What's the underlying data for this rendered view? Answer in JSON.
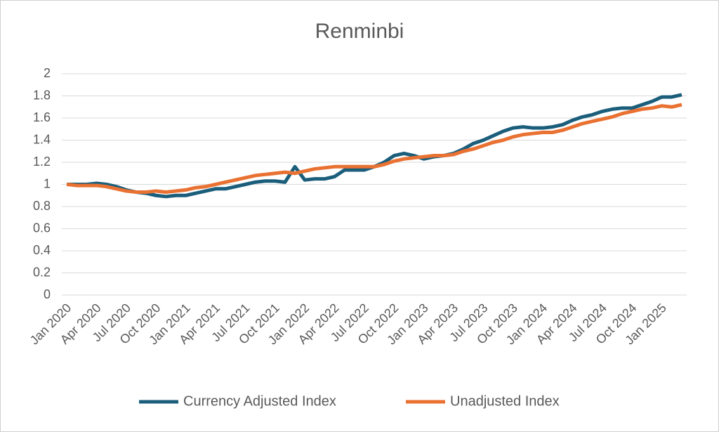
{
  "chart_data": {
    "type": "line",
    "title": "Renminbi",
    "categories": [
      "Jan 2020",
      null,
      null,
      "Apr 2020",
      null,
      null,
      "Jul 2020",
      null,
      null,
      "Oct 2020",
      null,
      null,
      "Jan 2021",
      null,
      null,
      "Apr 2021",
      null,
      null,
      "Jul 2021",
      null,
      null,
      "Oct 2021",
      null,
      null,
      "Jan 2022",
      null,
      null,
      "Apr 2022",
      null,
      null,
      "Jul 2022",
      null,
      null,
      "Oct 2022",
      null,
      null,
      "Jan 2023",
      null,
      null,
      "Apr 2023",
      null,
      null,
      "Jul 2023",
      null,
      null,
      "Oct 2023",
      null,
      null,
      "Jan 2024",
      null,
      null,
      "Apr 2024",
      null,
      null,
      "Jul 2024",
      null,
      null,
      "Oct 2024",
      null,
      null,
      "Jan 2025",
      null,
      null
    ],
    "series": [
      {
        "name": "Currency Adjusted Index",
        "color": "#1b5e7b",
        "values": [
          1.0,
          1.0,
          1.0,
          1.01,
          1.0,
          0.98,
          0.95,
          0.93,
          0.92,
          0.9,
          0.89,
          0.9,
          0.9,
          0.92,
          0.94,
          0.96,
          0.96,
          0.98,
          1.0,
          1.02,
          1.03,
          1.03,
          1.02,
          1.16,
          1.04,
          1.05,
          1.05,
          1.07,
          1.13,
          1.13,
          1.13,
          1.16,
          1.2,
          1.26,
          1.28,
          1.26,
          1.23,
          1.25,
          1.26,
          1.28,
          1.32,
          1.37,
          1.4,
          1.44,
          1.48,
          1.51,
          1.52,
          1.51,
          1.51,
          1.52,
          1.54,
          1.58,
          1.61,
          1.63,
          1.66,
          1.68,
          1.69,
          1.69,
          1.72,
          1.75,
          1.79,
          1.79,
          1.81
        ]
      },
      {
        "name": "Unadjusted Index",
        "color": "#e97132",
        "values": [
          1.0,
          0.99,
          0.99,
          0.99,
          0.98,
          0.96,
          0.94,
          0.93,
          0.93,
          0.94,
          0.93,
          0.94,
          0.95,
          0.97,
          0.98,
          1.0,
          1.02,
          1.04,
          1.06,
          1.08,
          1.09,
          1.1,
          1.11,
          1.1,
          1.12,
          1.14,
          1.15,
          1.16,
          1.16,
          1.16,
          1.16,
          1.16,
          1.18,
          1.21,
          1.23,
          1.24,
          1.25,
          1.26,
          1.26,
          1.27,
          1.3,
          1.32,
          1.35,
          1.38,
          1.4,
          1.43,
          1.45,
          1.46,
          1.47,
          1.47,
          1.49,
          1.52,
          1.55,
          1.57,
          1.59,
          1.61,
          1.64,
          1.66,
          1.68,
          1.69,
          1.71,
          1.7,
          1.72
        ]
      }
    ],
    "ylim": [
      0,
      2
    ],
    "yticks": [
      0,
      0.2,
      0.4,
      0.6,
      0.8,
      1,
      1.2,
      1.4,
      1.6,
      1.8,
      2
    ],
    "grid": true,
    "legend": "bottom"
  }
}
